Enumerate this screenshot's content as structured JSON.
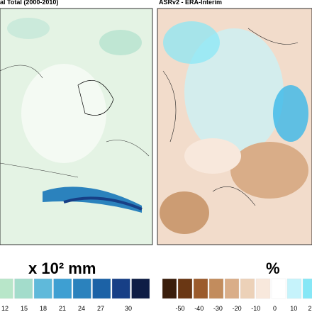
{
  "left_panel": {
    "title": "al Total (2000-2010)",
    "colorbar_label": "x 10² mm",
    "colorbar_colors": [
      "#b8e6c9",
      "#a3dccb",
      "#5fb9da",
      "#3e9fd2",
      "#2b82bd",
      "#1c62a6",
      "#173f86",
      "#0e1d45"
    ],
    "ticks": [
      "12",
      "15",
      "18",
      "21",
      "24",
      "27",
      "30"
    ]
  },
  "right_panel": {
    "title": "ASRv2 - ERA-Interim",
    "colorbar_label": "%",
    "colorbar_colors": [
      "#3a1e0c",
      "#6a3714",
      "#9b5b2c",
      "#c28c5d",
      "#d9ad88",
      "#ecd1b8",
      "#f8e8dc",
      "#ffffff",
      "#c6f3fb",
      "#86e7f6"
    ],
    "ticks": [
      "-50",
      "-40",
      "-30",
      "-20",
      "-10",
      "0",
      "10",
      "2"
    ]
  }
}
